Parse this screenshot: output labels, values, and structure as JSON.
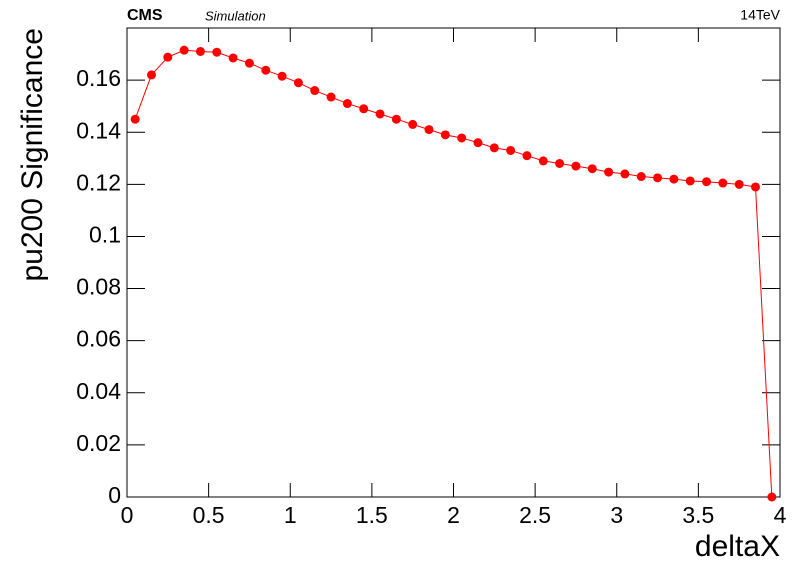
{
  "chart_data": {
    "type": "line",
    "cms_label": "CMS",
    "subtitle": "Simulation",
    "energy_label": "14TeV",
    "x_label": "deltaX",
    "y_label": "pu200 Significance",
    "x": [
      0.05,
      0.15,
      0.25,
      0.35,
      0.45,
      0.55,
      0.65,
      0.75,
      0.85,
      0.95,
      1.05,
      1.15,
      1.25,
      1.35,
      1.45,
      1.55,
      1.65,
      1.75,
      1.85,
      1.95,
      2.05,
      2.15,
      2.25,
      2.35,
      2.45,
      2.55,
      2.65,
      2.75,
      2.85,
      2.95,
      3.05,
      3.15,
      3.25,
      3.35,
      3.45,
      3.55,
      3.65,
      3.75,
      3.85,
      3.95
    ],
    "series": [
      {
        "color": "#ff0000",
        "values": [
          0.145,
          0.162,
          0.1688,
          0.1715,
          0.171,
          0.1707,
          0.1685,
          0.1665,
          0.1638,
          0.1615,
          0.159,
          0.156,
          0.1535,
          0.151,
          0.149,
          0.147,
          0.145,
          0.143,
          0.141,
          0.139,
          0.1378,
          0.136,
          0.134,
          0.133,
          0.131,
          0.129,
          0.128,
          0.127,
          0.126,
          0.1247,
          0.124,
          0.123,
          0.1225,
          0.122,
          0.1213,
          0.121,
          0.1205,
          0.12,
          0.119,
          0
        ]
      }
    ],
    "xlim": [
      0,
      4
    ],
    "xticks": [
      0,
      0.5,
      1,
      1.5,
      2,
      2.5,
      3,
      3.5,
      4
    ],
    "ylim": [
      0,
      0.18
    ],
    "yticks": [
      0,
      0.02,
      0.04,
      0.06,
      0.08,
      0.1,
      0.12,
      0.14,
      0.16
    ]
  }
}
